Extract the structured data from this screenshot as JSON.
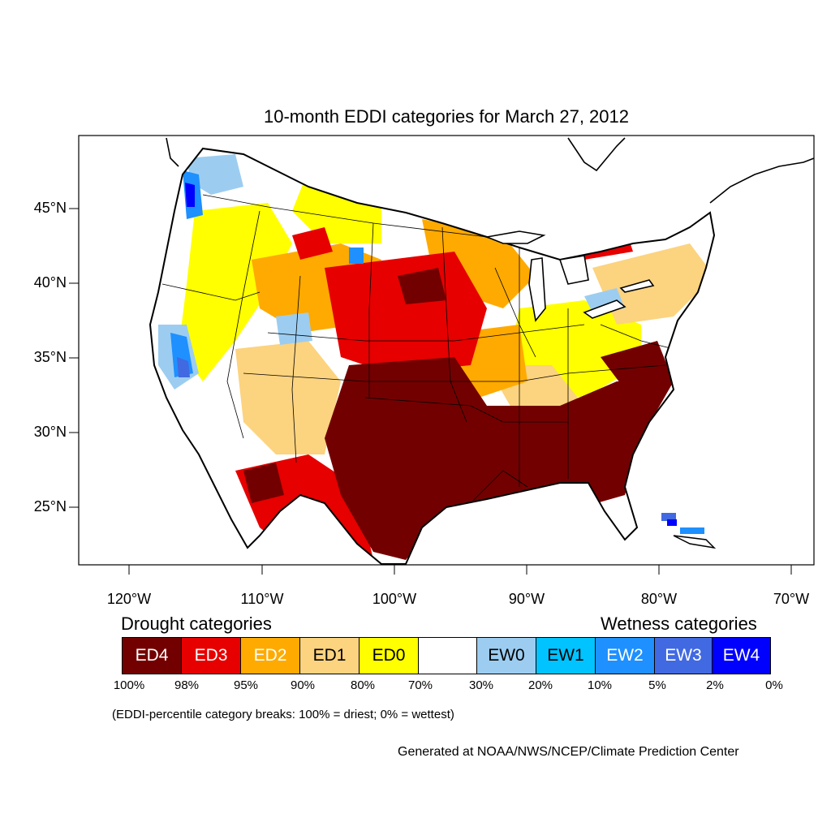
{
  "title": "10-month EDDI categories for March 27, 2012",
  "axes": {
    "lat_labels": [
      "45°N",
      "40°N",
      "35°N",
      "30°N",
      "25°N"
    ],
    "lon_labels": [
      "120°W",
      "110°W",
      "100°W",
      "90°W",
      "80°W",
      "70°W"
    ]
  },
  "legend": {
    "drought_heading": "Drought categories",
    "wetness_heading": "Wetness categories",
    "boxes": [
      {
        "label": "ED4",
        "color": "#730000",
        "text_color": "#ffffff"
      },
      {
        "label": "ED3",
        "color": "#e60000",
        "text_color": "#ffffff"
      },
      {
        "label": "ED2",
        "color": "#ffaa00",
        "text_color": "#ffffff"
      },
      {
        "label": "ED1",
        "color": "#fcd37f",
        "text_color": "#000000"
      },
      {
        "label": "ED0",
        "color": "#ffff00",
        "text_color": "#000000"
      },
      {
        "label": "",
        "color": "#ffffff",
        "text_color": "#000000"
      },
      {
        "label": "EW0",
        "color": "#9ccdf1",
        "text_color": "#000000"
      },
      {
        "label": "EW1",
        "color": "#00c3ff",
        "text_color": "#000000"
      },
      {
        "label": "EW2",
        "color": "#1e90ff",
        "text_color": "#ffffff"
      },
      {
        "label": "EW3",
        "color": "#4169e1",
        "text_color": "#ffffff"
      },
      {
        "label": "EW4",
        "color": "#0000ff",
        "text_color": "#ffffff"
      }
    ],
    "breaks": [
      "100%",
      "98%",
      "95%",
      "90%",
      "80%",
      "70%",
      "30%",
      "20%",
      "10%",
      "5%",
      "2%",
      "0%"
    ]
  },
  "note": "(EDDI-percentile category breaks: 100% = driest; 0% = wettest)",
  "credit": "Generated at NOAA/NWS/NCEP/Climate Prediction Center"
}
